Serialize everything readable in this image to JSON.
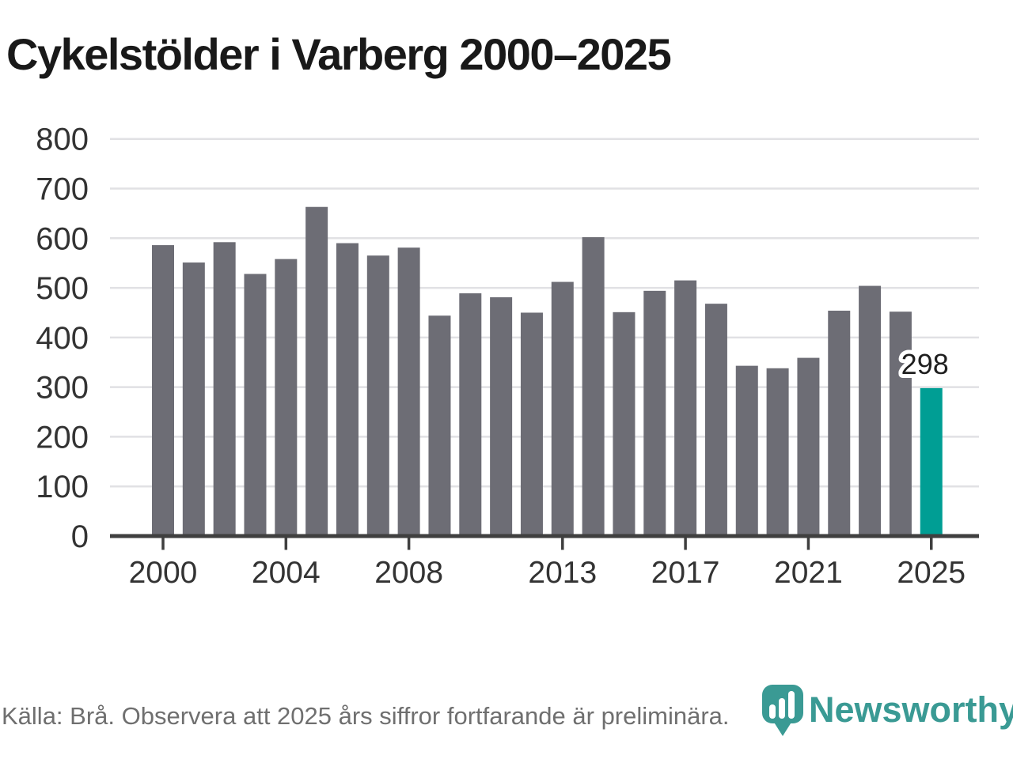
{
  "page": {
    "title": "Cykelstölder i Varberg 2000–2025"
  },
  "chart_data": {
    "type": "bar",
    "title": "Cykelstölder i Varberg 2000–2025",
    "x": [
      2000,
      2001,
      2002,
      2003,
      2004,
      2005,
      2006,
      2007,
      2008,
      2009,
      2010,
      2011,
      2012,
      2013,
      2014,
      2015,
      2016,
      2017,
      2018,
      2019,
      2020,
      2021,
      2022,
      2023,
      2024,
      2025
    ],
    "values": [
      586,
      551,
      592,
      528,
      558,
      663,
      590,
      565,
      581,
      444,
      489,
      481,
      450,
      512,
      602,
      451,
      494,
      515,
      468,
      343,
      338,
      359,
      454,
      504,
      452,
      298
    ],
    "ylim": [
      0,
      800
    ],
    "y_ticks": [
      0,
      100,
      200,
      300,
      400,
      500,
      600,
      700,
      800
    ],
    "x_tick_labels": [
      "2000",
      "2004",
      "2008",
      "2013",
      "2017",
      "2021",
      "2025"
    ],
    "grid": "horizontal",
    "legend": "none",
    "bar_color": "#6d6d75",
    "highlight": {
      "year": 2025,
      "color": "#009e94"
    },
    "annotations": [
      {
        "year": 2025,
        "text": "298"
      }
    ]
  },
  "footer": {
    "source": "Källa: Brå. Observera att 2025 års siffror fortfarande är preliminära.",
    "logo_text": "Newsworthy"
  },
  "colors": {
    "bar": "#6d6d75",
    "highlight": "#009e94",
    "gridline": "#e1e1e4",
    "axis": "#3f3f3f",
    "tick_label": "#333333",
    "annotation_text": "#1f1f1f",
    "source_text": "#6f6f6f",
    "logo_teal": "#3a9a94"
  }
}
